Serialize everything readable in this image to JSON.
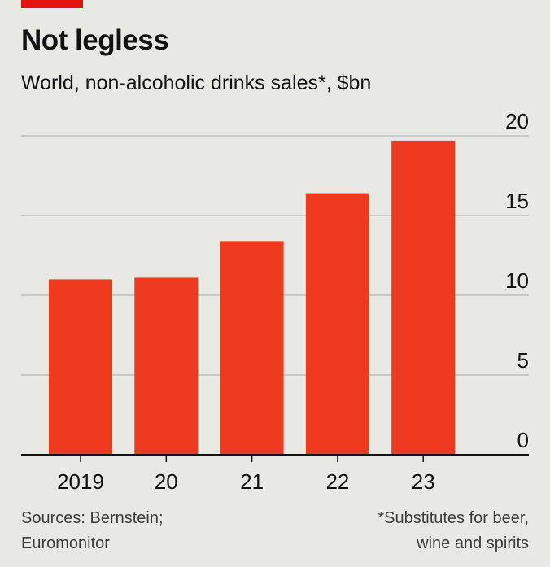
{
  "header": {
    "title": "Not legless",
    "subtitle": "World, non-alcoholic drinks sales*, $bn"
  },
  "footer": {
    "sources_line1": "Sources: Bernstein;",
    "sources_line2": "Euromonitor",
    "note_line1": "*Substitutes for beer,",
    "note_line2": "wine and spirits"
  },
  "colors": {
    "accent": "#e3120b",
    "bar": "#ee3b1f",
    "background": "#e9e9e4",
    "grid": "#b7b7b2",
    "axis": "#121212"
  },
  "chart_data": {
    "type": "bar",
    "categories": [
      "2019",
      "20",
      "21",
      "22",
      "23"
    ],
    "values": [
      11.0,
      11.1,
      13.4,
      16.4,
      19.7
    ],
    "title": "Not legless",
    "subtitle": "World, non-alcoholic drinks sales*, $bn",
    "xlabel": "",
    "ylabel": "",
    "ylim": [
      0,
      20
    ],
    "yticks": [
      0,
      5,
      10,
      15,
      20
    ],
    "ytick_labels": [
      "0",
      "5",
      "10",
      "15",
      "20"
    ],
    "y_axis_side": "right",
    "grid": true
  }
}
